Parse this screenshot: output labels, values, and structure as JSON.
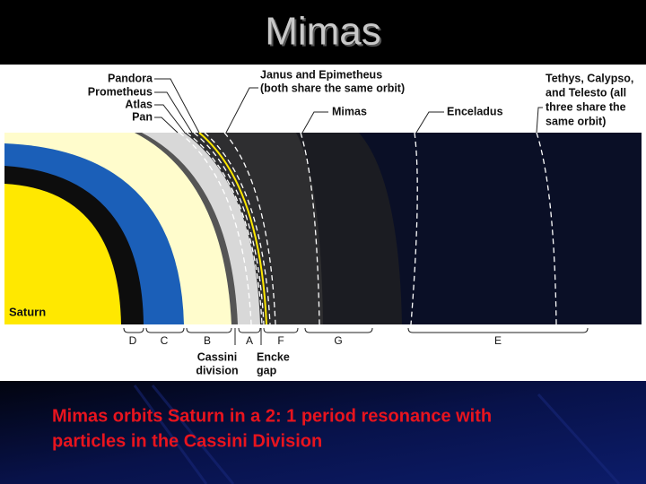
{
  "title": "Mimas",
  "diagram": {
    "moon_labels": [
      "Pandora",
      "Prometheus",
      "Atlas",
      "Pan"
    ],
    "janus_label": [
      "Janus and Epimetheus",
      "(both share the same orbit)"
    ],
    "mimas_label": "Mimas",
    "enceladus_label": "Enceladus",
    "tethys_label": [
      "Tethys, Calypso,",
      "and Telesto (all",
      "three share the",
      "same orbit)"
    ],
    "planet_label": "Saturn",
    "ring_labels": [
      "D",
      "C",
      "B",
      "A",
      "F",
      "G",
      "E"
    ],
    "cassini_label": [
      "Cassini",
      "division"
    ],
    "encke_label": [
      "Encke",
      "gap"
    ]
  },
  "caption": [
    "Mimas orbits Saturn in a 2: 1 period resonance with",
    "particles in the Cassini Division"
  ]
}
